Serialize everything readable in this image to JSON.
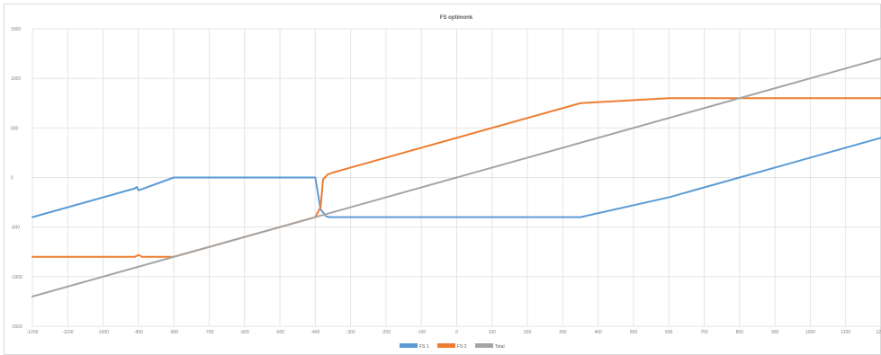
{
  "chart_data": {
    "type": "line",
    "title": "FS optimonk",
    "xlabel": "",
    "ylabel": "",
    "xlim": [
      -1200,
      1200
    ],
    "ylim": [
      -1500,
      1500
    ],
    "xticks": [
      -1200,
      -1100,
      -1000,
      -900,
      -800,
      -700,
      -600,
      -500,
      -400,
      -300,
      -200,
      -100,
      0,
      100,
      200,
      300,
      400,
      500,
      600,
      700,
      800,
      900,
      1000,
      1100,
      1200
    ],
    "yticks": [
      -1500,
      -1000,
      -500,
      0,
      500,
      1000,
      1500
    ],
    "grid": true,
    "legend_position": "bottom",
    "series": [
      {
        "name": "FS 1",
        "color": "#5b9bd5",
        "points": [
          [
            -1200,
            -400
          ],
          [
            -910,
            -110
          ],
          [
            -905,
            -95
          ],
          [
            -900,
            -130
          ],
          [
            -800,
            0
          ],
          [
            -400,
            0
          ],
          [
            -385,
            -320
          ],
          [
            -370,
            -390
          ],
          [
            -360,
            -400
          ],
          [
            350,
            -400
          ],
          [
            600,
            -200
          ],
          [
            800,
            0
          ],
          [
            1200,
            400
          ]
        ]
      },
      {
        "name": "FS 2",
        "color": "#ed7d31",
        "points": [
          [
            -1200,
            -800
          ],
          [
            -910,
            -800
          ],
          [
            -900,
            -780
          ],
          [
            -890,
            -800
          ],
          [
            -800,
            -800
          ],
          [
            -400,
            -400
          ],
          [
            -385,
            -300
          ],
          [
            -378,
            -20
          ],
          [
            -365,
            30
          ],
          [
            -350,
            50
          ],
          [
            350,
            750
          ],
          [
            600,
            800
          ],
          [
            1200,
            800
          ]
        ]
      },
      {
        "name": "Total",
        "color": "#a5a5a5",
        "points": [
          [
            -1200,
            -1200
          ],
          [
            1200,
            1200
          ]
        ]
      }
    ]
  }
}
